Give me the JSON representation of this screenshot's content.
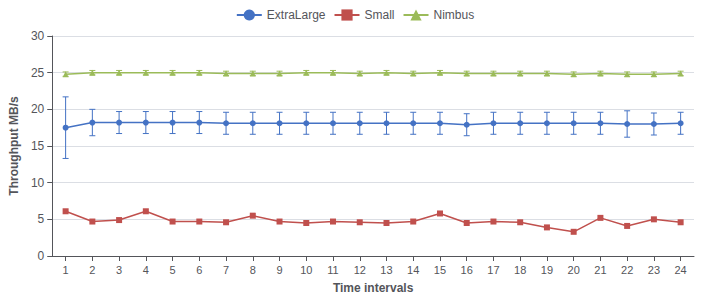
{
  "chart_data": {
    "type": "line",
    "x": [
      1,
      2,
      3,
      4,
      5,
      6,
      7,
      8,
      9,
      10,
      11,
      12,
      13,
      14,
      15,
      16,
      17,
      18,
      19,
      20,
      21,
      22,
      23,
      24
    ],
    "xlabel": "Time intervals",
    "ylabel": "Throughput MB/s",
    "xlim": [
      0.5,
      24.5
    ],
    "xticks": [
      1,
      2,
      3,
      4,
      5,
      6,
      7,
      8,
      9,
      10,
      11,
      12,
      13,
      14,
      15,
      16,
      17,
      18,
      19,
      20,
      21,
      22,
      23,
      24
    ],
    "ylim": [
      0,
      30
    ],
    "yticks": [
      0,
      5,
      10,
      15,
      20,
      25,
      30
    ],
    "grid": true,
    "legend": "top",
    "series": [
      {
        "name": "ExtraLarge",
        "color": "#4472C4",
        "marker": "circle",
        "values": [
          17.5,
          18.2,
          18.2,
          18.2,
          18.2,
          18.2,
          18.1,
          18.1,
          18.1,
          18.1,
          18.1,
          18.1,
          18.1,
          18.1,
          18.1,
          17.9,
          18.1,
          18.1,
          18.1,
          18.1,
          18.1,
          18.0,
          18.0,
          18.1
        ],
        "errors": [
          4.2,
          1.8,
          1.5,
          1.5,
          1.5,
          1.5,
          1.5,
          1.5,
          1.5,
          1.5,
          1.5,
          1.5,
          1.5,
          1.5,
          1.5,
          1.5,
          1.5,
          1.5,
          1.5,
          1.5,
          1.5,
          1.8,
          1.5,
          1.5
        ]
      },
      {
        "name": "Small",
        "color": "#C0504D",
        "marker": "square",
        "values": [
          6.1,
          4.7,
          4.9,
          6.1,
          4.7,
          4.7,
          4.6,
          5.5,
          4.7,
          4.5,
          4.7,
          4.6,
          4.5,
          4.7,
          5.8,
          4.5,
          4.7,
          4.6,
          3.9,
          3.3,
          5.2,
          4.1,
          5.0,
          4.6
        ]
      },
      {
        "name": "Nimbus",
        "color": "#9BBB59",
        "marker": "triangle",
        "values": [
          24.8,
          25.0,
          25.0,
          25.0,
          25.0,
          25.0,
          24.9,
          24.9,
          24.9,
          25.0,
          25.0,
          24.9,
          25.0,
          24.9,
          25.0,
          24.9,
          24.9,
          24.9,
          24.9,
          24.8,
          24.9,
          24.8,
          24.8,
          24.9
        ],
        "errors": [
          0.3,
          0.3,
          0.3,
          0.3,
          0.3,
          0.3,
          0.3,
          0.3,
          0.3,
          0.3,
          0.3,
          0.3,
          0.3,
          0.3,
          0.3,
          0.3,
          0.3,
          0.3,
          0.3,
          0.3,
          0.3,
          0.3,
          0.3,
          0.3
        ]
      }
    ]
  }
}
